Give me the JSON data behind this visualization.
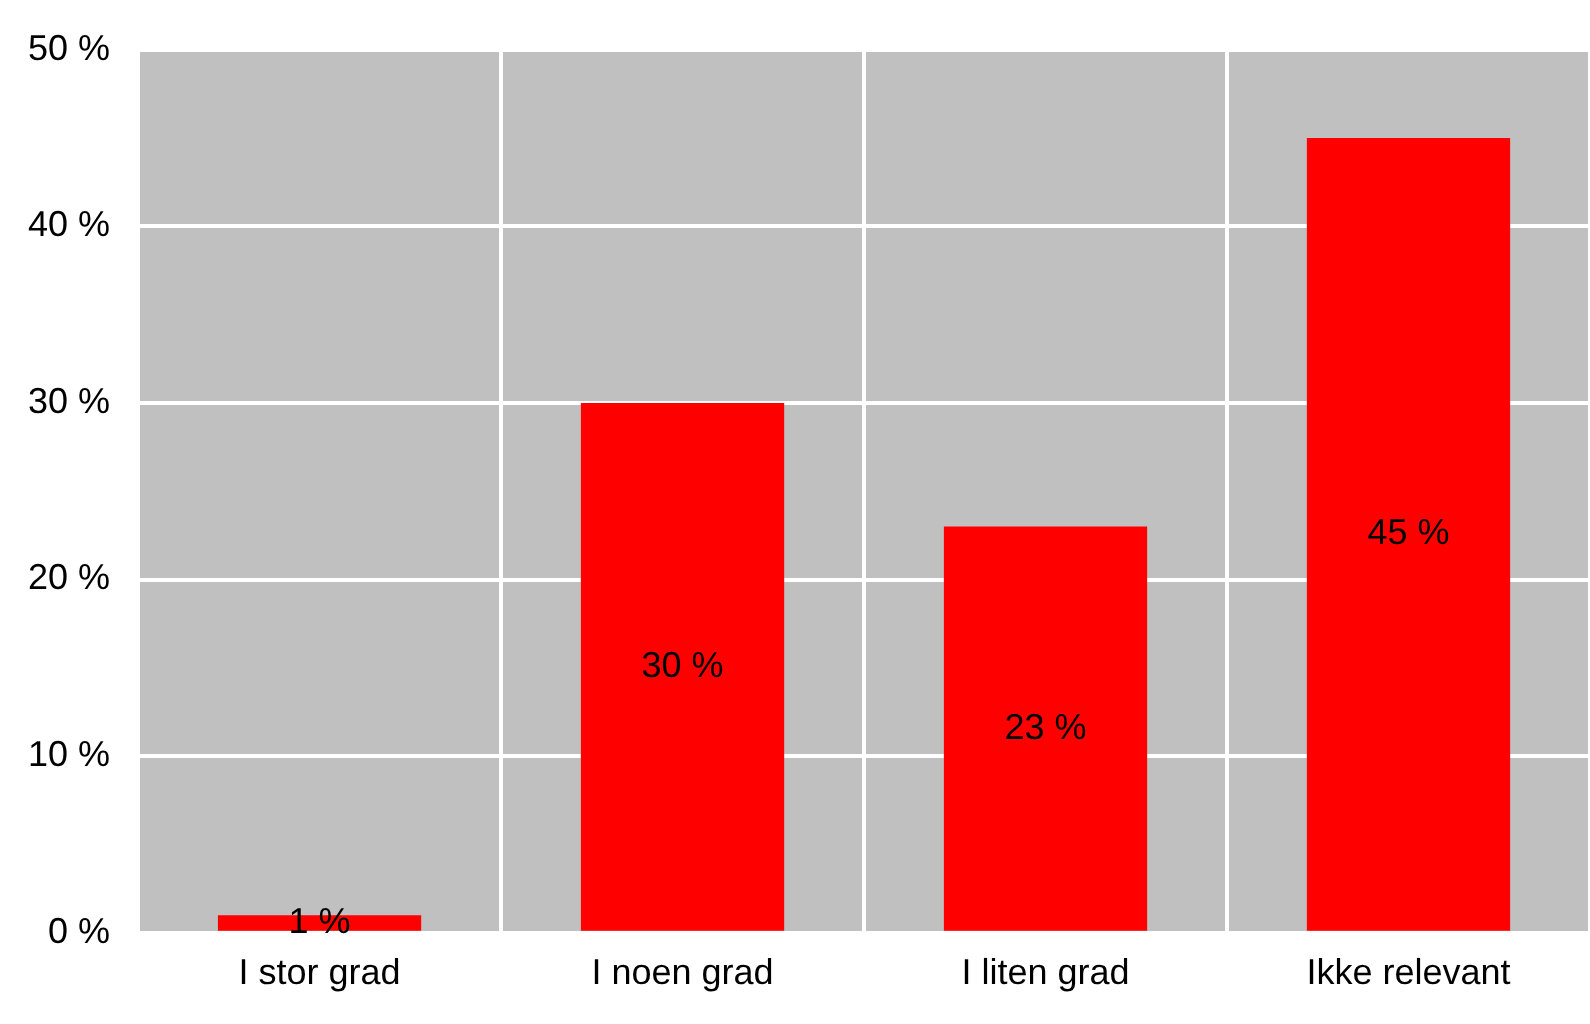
{
  "chart_data": {
    "type": "bar",
    "categories": [
      "I stor grad",
      "I noen grad",
      "I liten grad",
      "Ikke relevant"
    ],
    "values": [
      1,
      30,
      23,
      45
    ],
    "color": "#ff0000",
    "data_labels": true,
    "value_labels": [
      "1 %",
      "30 %",
      "23 %",
      "45 %"
    ],
    "ylim": [
      0,
      50
    ],
    "yticks": [
      {
        "value": 0,
        "label": "0 %"
      },
      {
        "value": 10,
        "label": "10 %"
      },
      {
        "value": 20,
        "label": "20 %"
      },
      {
        "value": 30,
        "label": "30 %"
      },
      {
        "value": 40,
        "label": "40 %"
      },
      {
        "value": 50,
        "label": "50 %"
      }
    ],
    "grid": true,
    "legend": false
  }
}
